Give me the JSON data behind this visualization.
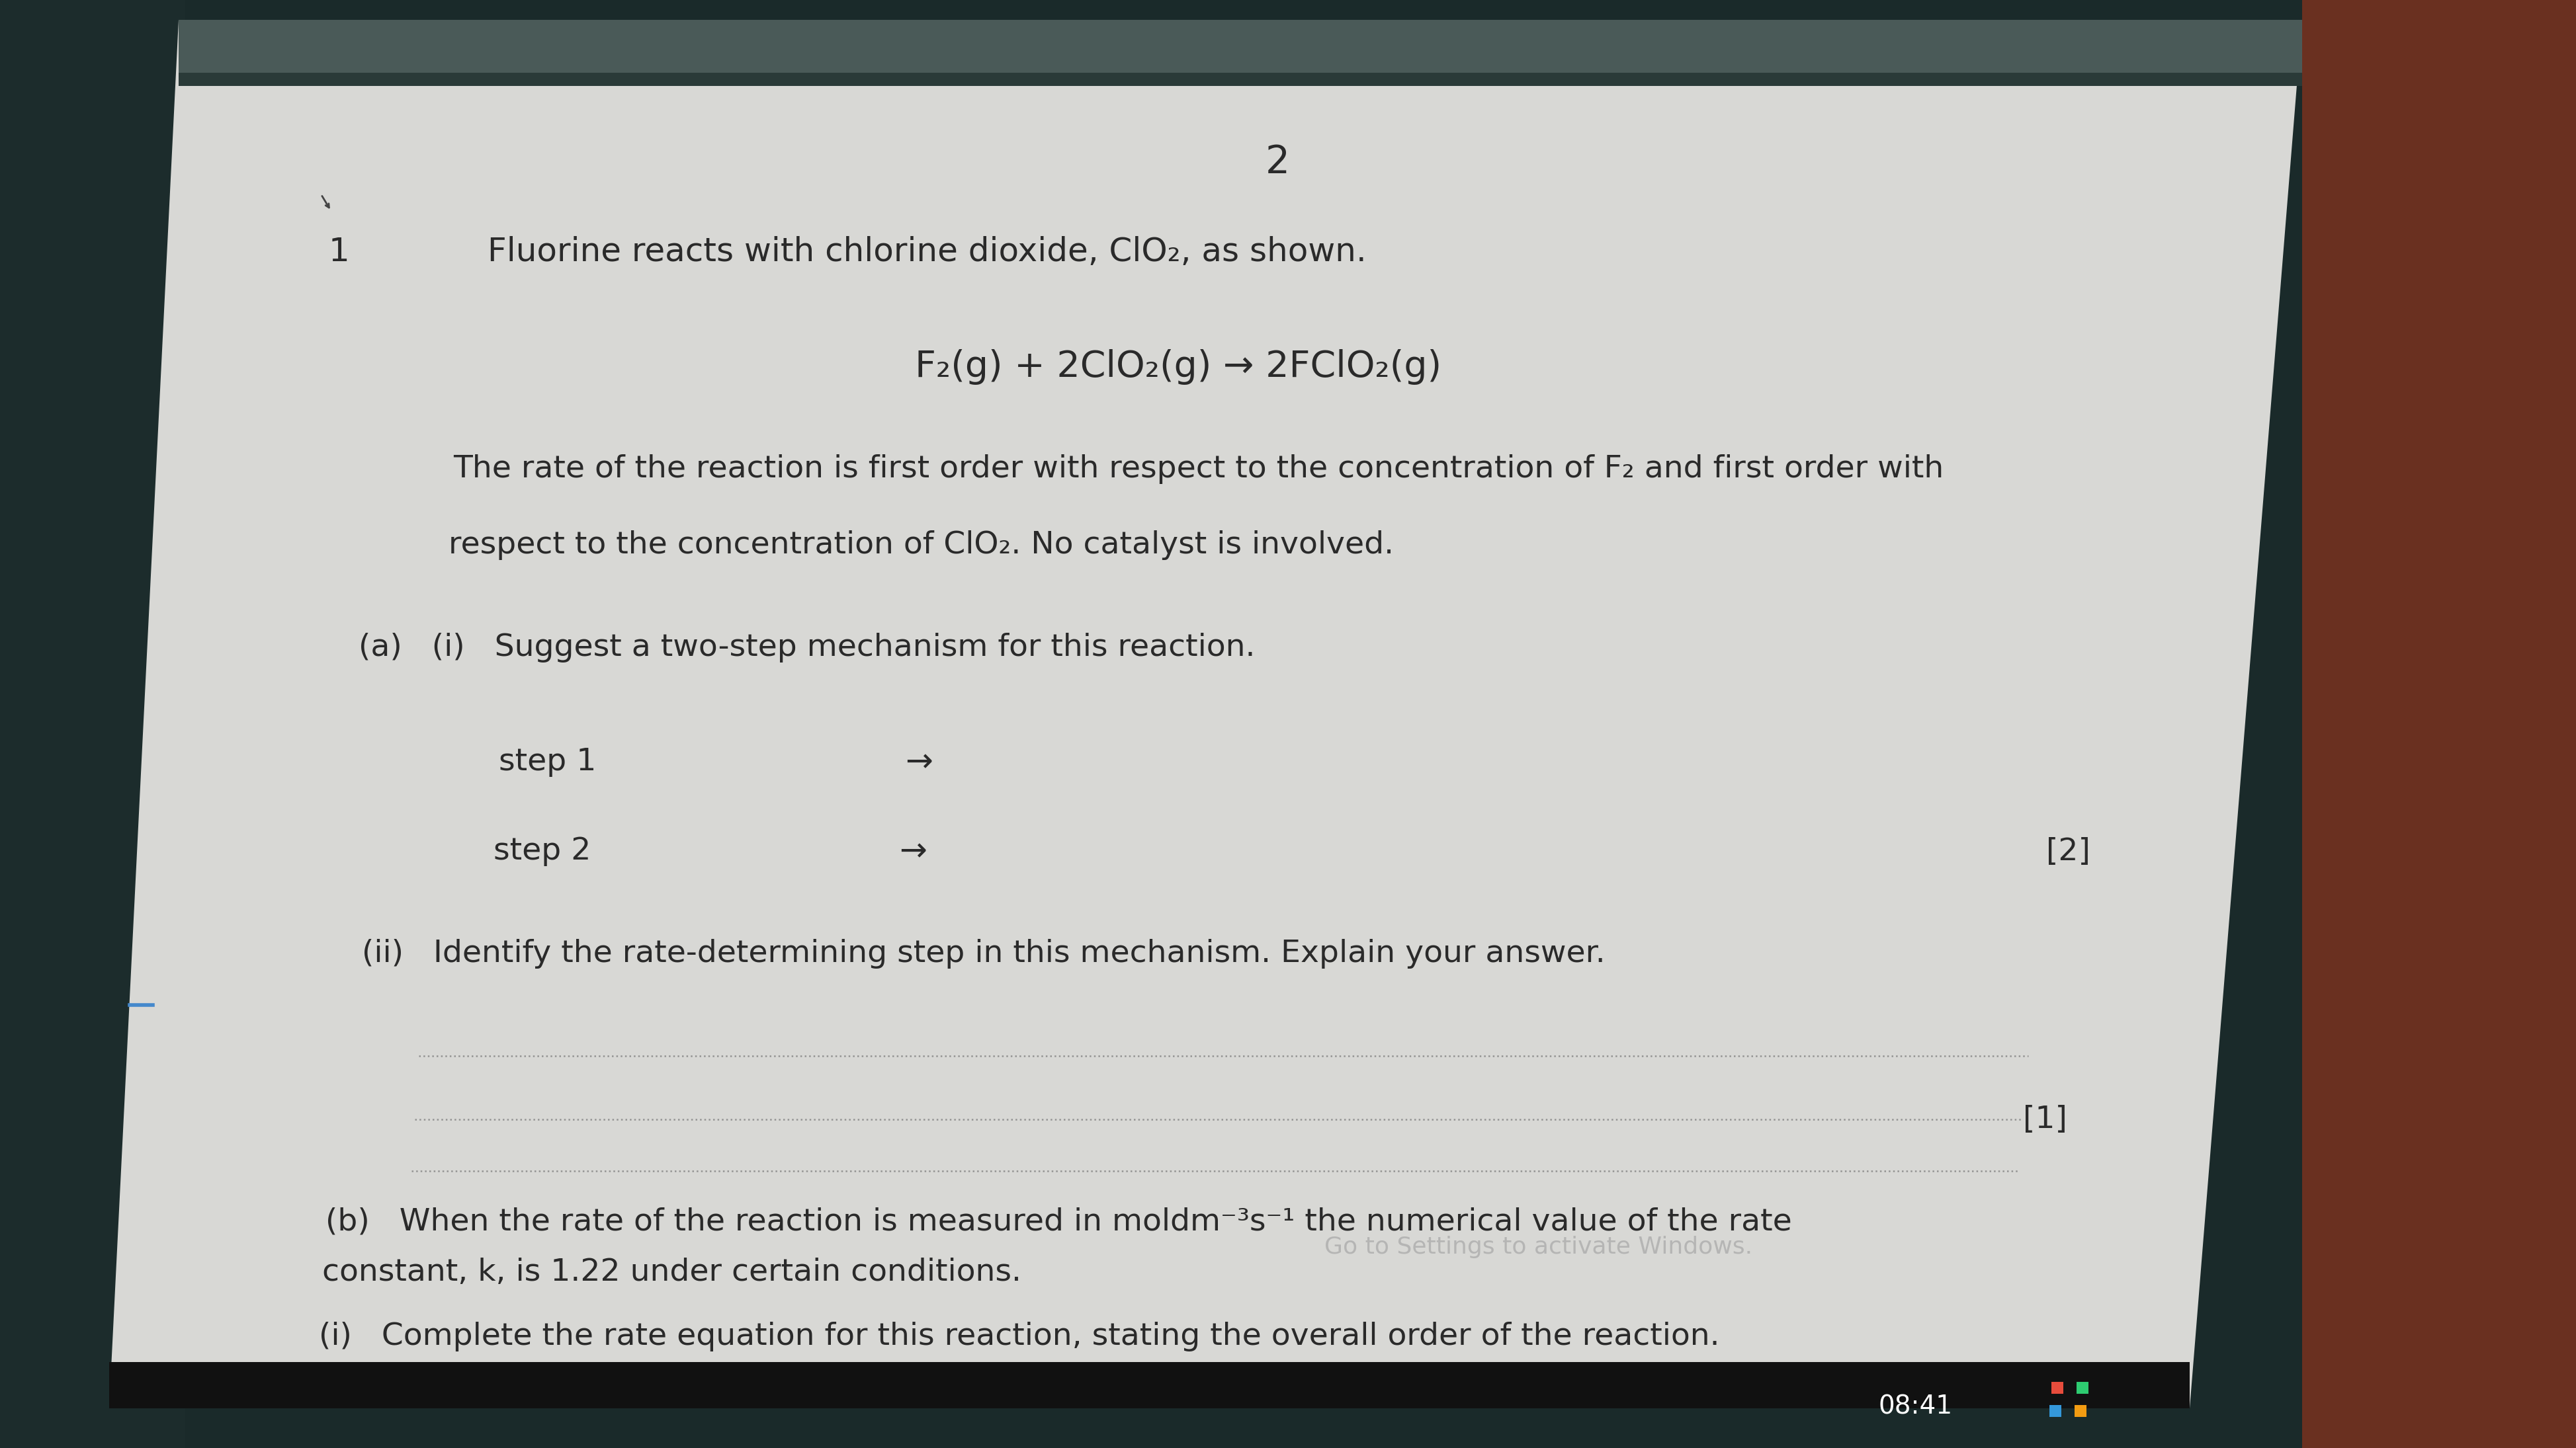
{
  "bg_left_color": "#1a2a2a",
  "bg_right_color": "#7a4030",
  "screen_color": "#d8d8d5",
  "header_bar_color": "#4a5a58",
  "page_number": "2",
  "q_number": "1",
  "q_intro": "Fluorine reacts with chlorine dioxide, ClO₂, as shown.",
  "equation": "F₂(g) + 2ClO₂(g) → 2FClO₂(g)",
  "para1": "The rate of the reaction is first order with respect to the concentration of F₂ and first order with",
  "para2": "respect to the concentration of ClO₂. No catalyst is involved.",
  "a_label": "(a)   (i)   Suggest a two-step mechanism for this reaction.",
  "step1_label": "step 1",
  "step1_arrow": "→",
  "step2_label": "step 2",
  "step2_arrow": "→",
  "marks_2": "[2]",
  "aii_label": "(ii)   Identify the rate-determining step in this mechanism. Explain your answer.",
  "marks_1": "[1]",
  "b_intro1": "(b)   When the rate of the reaction is measured in moldm⁻³s⁻¹ the numerical value of the rate",
  "b_intro2": "constant, k, is 1.22 under certain conditions.",
  "bi_label": "(i)   Complete the rate equation for this reaction, stating the overall order of the reaction.",
  "watermark": "Go to Settings to activate Windows.",
  "time_text": "08:41",
  "font_color": "#3a3a3a",
  "dark_color": "#2a2a2a",
  "taskbar_color": "#111111"
}
